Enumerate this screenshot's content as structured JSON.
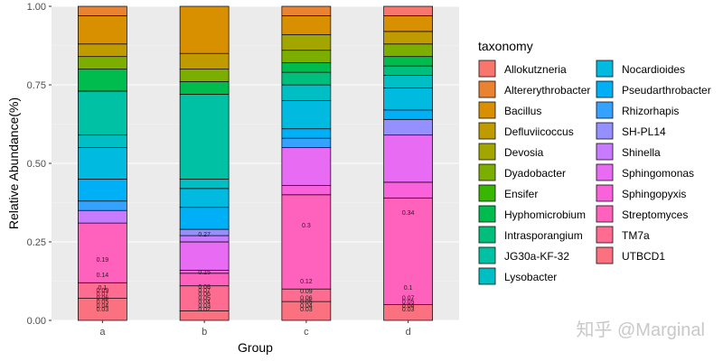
{
  "chart_data": {
    "type": "bar",
    "stacked": true,
    "categories": [
      "a",
      "b",
      "c",
      "d"
    ],
    "xlabel": "Group",
    "ylabel": "Relative Abundance(%)",
    "ylim": [
      0,
      1
    ],
    "yticks": [
      "0.00",
      "0.25",
      "0.50",
      "0.75",
      "1.00"
    ],
    "legend_title": "taxonomy",
    "legend_position": "right",
    "series": [
      {
        "name": "Allokutzneria",
        "color": "#F8766D",
        "values": [
          0.0,
          0.0,
          0.0,
          0.03
        ]
      },
      {
        "name": "Altererythrobacter",
        "color": "#EA8331",
        "values": [
          0.03,
          0.0,
          0.03,
          0.0
        ]
      },
      {
        "name": "Bacillus",
        "color": "#D89000",
        "values": [
          0.09,
          0.15,
          0.06,
          0.05
        ]
      },
      {
        "name": "Defluviicoccus",
        "color": "#C09B00",
        "values": [
          0.04,
          0.05,
          0.0,
          0.04
        ]
      },
      {
        "name": "Devosia",
        "color": "#A3A500",
        "values": [
          0.0,
          0.0,
          0.05,
          0.0
        ]
      },
      {
        "name": "Dyadobacter",
        "color": "#7CAE00",
        "values": [
          0.04,
          0.04,
          0.04,
          0.04
        ]
      },
      {
        "name": "Ensifer",
        "color": "#39B600",
        "values": [
          0.0,
          0.0,
          0.0,
          0.0
        ]
      },
      {
        "name": "Hyphomicrobium",
        "color": "#00BB4E",
        "values": [
          0.07,
          0.04,
          0.03,
          0.03
        ]
      },
      {
        "name": "Intrasporangium",
        "color": "#00BF7D",
        "values": [
          0.0,
          0.0,
          0.04,
          0.03
        ]
      },
      {
        "name": "JG30a-KF-32",
        "color": "#00C1A3",
        "values": [
          0.14,
          0.27,
          0.0,
          0.0
        ]
      },
      {
        "name": "Lysobacter",
        "color": "#00BFC4",
        "values": [
          0.04,
          0.03,
          0.05,
          0.04
        ]
      },
      {
        "name": "Nocardioides",
        "color": "#00BAE0",
        "values": [
          0.1,
          0.06,
          0.09,
          0.07
        ]
      },
      {
        "name": "Pseudarthrobacter",
        "color": "#00B0F6",
        "values": [
          0.07,
          0.07,
          0.03,
          0.03
        ]
      },
      {
        "name": "Rhizorhapis",
        "color": "#35A2FF",
        "values": [
          0.03,
          0.0,
          0.03,
          0.0
        ]
      },
      {
        "name": "SH-PL14",
        "color": "#9590FF",
        "values": [
          0.0,
          0.02,
          0.0,
          0.05
        ]
      },
      {
        "name": "Shinella",
        "color": "#C77CFF",
        "values": [
          0.04,
          0.02,
          0.0,
          0.0
        ]
      },
      {
        "name": "Sphingomonas",
        "color": "#E76BF3",
        "values": [
          0.0,
          0.09,
          0.12,
          0.15
        ]
      },
      {
        "name": "Sphingopyxis",
        "color": "#FA62DB",
        "values": [
          0.0,
          0.01,
          0.03,
          0.05
        ]
      },
      {
        "name": "Streptomyces",
        "color": "#FF62BC",
        "values": [
          0.19,
          0.04,
          0.3,
          0.34
        ]
      },
      {
        "name": "TM7a",
        "color": "#FF6C91",
        "values": [
          0.05,
          0.08,
          0.04,
          0.0
        ]
      },
      {
        "name": "UTBCD1",
        "color": "#FC717F",
        "values": [
          0.07,
          0.03,
          0.06,
          0.05
        ]
      }
    ],
    "value_labels": [
      [
        "0.19",
        "0.14",
        "0.1",
        "0.09",
        "0.07",
        "0.06",
        "0.05",
        "0.04",
        "0.03"
      ],
      [
        "0.27",
        "0.15",
        "0.08",
        "0.07",
        "0.06",
        "0.05",
        "0.04",
        "0.03",
        "0.02"
      ],
      [
        "0.3",
        "0.12",
        "0.09",
        "0.06",
        "0.05",
        "0.04",
        "0.03"
      ],
      [
        "0.34",
        "0.1",
        "0.07",
        "0.05",
        "0.04",
        "0.03"
      ]
    ]
  },
  "watermark": "知乎 @Marginal"
}
